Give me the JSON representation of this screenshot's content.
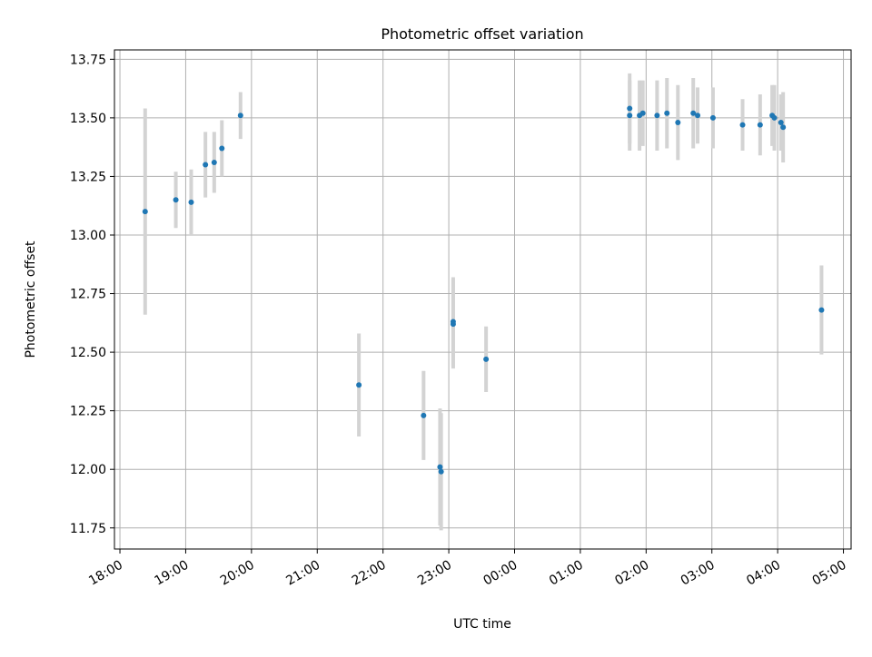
{
  "chart_data": {
    "type": "scatter",
    "title": "Photometric offset variation",
    "xlabel": "UTC time",
    "ylabel": "Photometric offset",
    "grid": true,
    "x_ticks": [
      "18:00",
      "19:00",
      "20:00",
      "21:00",
      "22:00",
      "23:00",
      "00:00",
      "01:00",
      "02:00",
      "03:00",
      "04:00",
      "05:00"
    ],
    "y_ticks": [
      "11.75",
      "12.00",
      "12.25",
      "12.50",
      "12.75",
      "13.00",
      "13.25",
      "13.50",
      "13.75"
    ],
    "xlim": [
      "17:55",
      "05:07"
    ],
    "ylim": [
      11.66,
      13.79
    ],
    "colors": {
      "point": "#1f77b4",
      "errorbar": "#d3d3d3",
      "grid": "#b0b0b0"
    },
    "series": [
      {
        "points": [
          {
            "x": "18:23",
            "y": 13.1,
            "err": 0.44
          },
          {
            "x": "18:51",
            "y": 13.15,
            "err": 0.12
          },
          {
            "x": "19:05",
            "y": 13.14,
            "err": 0.14
          },
          {
            "x": "19:18",
            "y": 13.3,
            "err": 0.14
          },
          {
            "x": "19:26",
            "y": 13.31,
            "err": 0.13
          },
          {
            "x": "19:33",
            "y": 13.37,
            "err": 0.12
          },
          {
            "x": "19:50",
            "y": 13.51,
            "err": 0.1
          },
          {
            "x": "21:38",
            "y": 12.36,
            "err": 0.22
          },
          {
            "x": "22:37",
            "y": 12.23,
            "err": 0.19
          },
          {
            "x": "22:52",
            "y": 12.01,
            "err": 0.25
          },
          {
            "x": "22:53",
            "y": 11.99,
            "err": 0.25
          },
          {
            "x": "23:04",
            "y": 12.63,
            "err": 0.19
          },
          {
            "x": "23:04",
            "y": 12.62,
            "err": 0.19
          },
          {
            "x": "23:34",
            "y": 12.47,
            "err": 0.14
          },
          {
            "x": "01:45",
            "y": 13.51,
            "err": 0.15
          },
          {
            "x": "01:45",
            "y": 13.54,
            "err": 0.15
          },
          {
            "x": "01:54",
            "y": 13.51,
            "err": 0.15
          },
          {
            "x": "01:57",
            "y": 13.52,
            "err": 0.14
          },
          {
            "x": "02:10",
            "y": 13.51,
            "err": 0.15
          },
          {
            "x": "02:19",
            "y": 13.52,
            "err": 0.15
          },
          {
            "x": "02:29",
            "y": 13.48,
            "err": 0.16
          },
          {
            "x": "02:43",
            "y": 13.52,
            "err": 0.15
          },
          {
            "x": "02:47",
            "y": 13.51,
            "err": 0.12
          },
          {
            "x": "03:01",
            "y": 13.5,
            "err": 0.13
          },
          {
            "x": "03:28",
            "y": 13.47,
            "err": 0.11
          },
          {
            "x": "03:44",
            "y": 13.47,
            "err": 0.13
          },
          {
            "x": "03:55",
            "y": 13.51,
            "err": 0.13
          },
          {
            "x": "03:57",
            "y": 13.5,
            "err": 0.14
          },
          {
            "x": "04:03",
            "y": 13.48,
            "err": 0.12
          },
          {
            "x": "04:05",
            "y": 13.46,
            "err": 0.15
          },
          {
            "x": "04:40",
            "y": 12.68,
            "err": 0.19
          }
        ]
      }
    ]
  }
}
